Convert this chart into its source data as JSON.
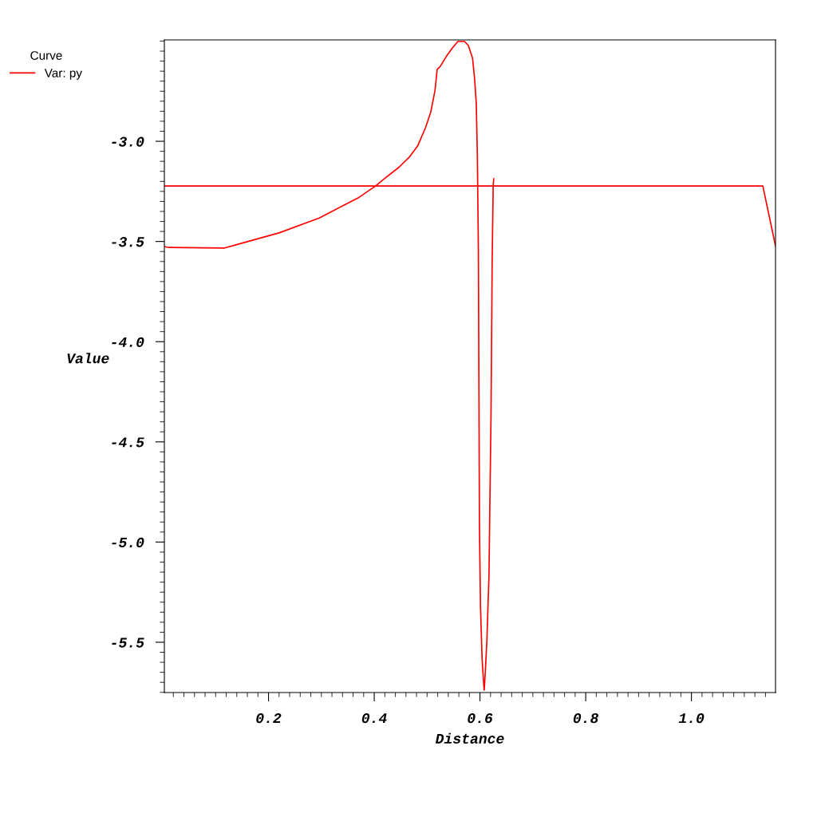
{
  "chart_data": {
    "type": "line",
    "xlabel": "Distance",
    "ylabel": "Value",
    "legend_title": "Curve",
    "legend": "top left",
    "series": [
      {
        "name": "Var: py",
        "color": "#ff0000",
        "x": [
          0.003,
          0.011,
          0.116,
          0.145,
          0.22,
          0.296,
          0.371,
          0.402,
          0.417,
          0.447,
          0.466,
          0.482,
          0.497,
          0.507,
          0.515,
          0.519,
          0.525,
          0.537,
          0.548,
          0.558,
          0.571,
          0.578,
          0.586,
          0.59,
          0.593,
          0.595,
          0.597,
          0.599,
          0.601,
          0.604,
          0.607,
          0.608,
          0.61,
          0.613,
          0.617,
          0.619,
          0.621,
          0.623,
          0.625,
          0.626,
          null,
          0.003,
          1.135,
          1.159
        ],
        "values": [
          -3.525,
          -3.53,
          -3.533,
          -3.512,
          -3.457,
          -3.383,
          -3.28,
          -3.224,
          -3.191,
          -3.129,
          -3.08,
          -3.024,
          -2.932,
          -2.853,
          -2.745,
          -2.642,
          -2.626,
          -2.574,
          -2.534,
          -2.502,
          -2.502,
          -2.522,
          -2.586,
          -2.693,
          -2.813,
          -3.064,
          -3.541,
          -4.927,
          -5.325,
          -5.584,
          -5.707,
          -5.739,
          -5.651,
          -5.496,
          -5.17,
          -4.752,
          -4.338,
          -3.609,
          -3.223,
          -3.187,
          null,
          -3.223,
          -3.223,
          -3.522
        ]
      }
    ],
    "xlim": [
      0.003,
      1.159
    ],
    "ylim": [
      -5.751,
      -2.494
    ],
    "xticks": [
      0.2,
      0.4,
      0.6,
      0.8,
      {
        "value": 1,
        "label": "1.0"
      }
    ],
    "yticks": [
      -5.5,
      {
        "value": -5,
        "label": "-5.0"
      },
      -4.5,
      {
        "value": -4,
        "label": "-4.0"
      },
      -3.5,
      {
        "value": -3,
        "label": "-3.0"
      }
    ],
    "grid": false,
    "marker": "none",
    "line_style": "solid"
  }
}
